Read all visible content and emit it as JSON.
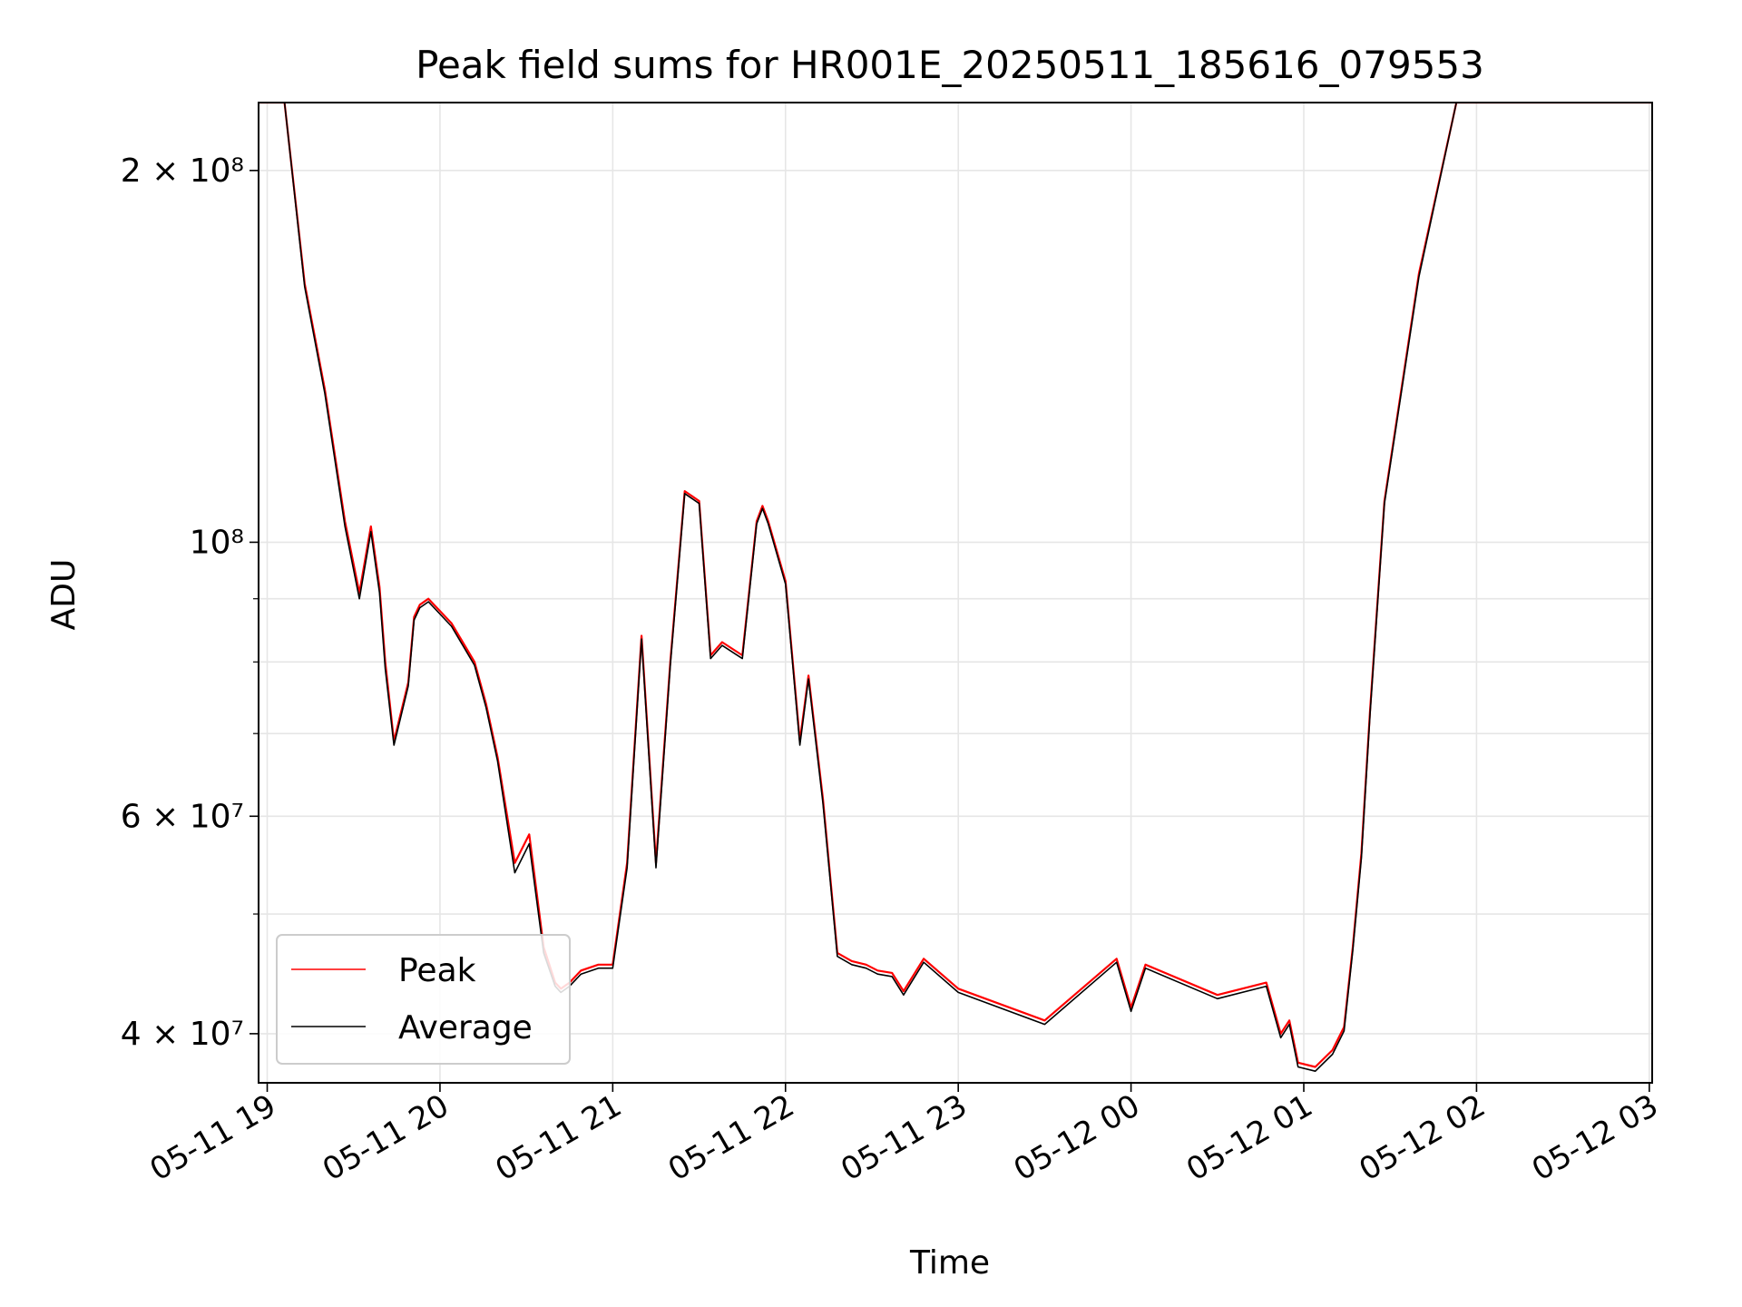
{
  "chart_data": {
    "type": "line",
    "title": "Peak field sums for HR001E_20250511_185616_079553",
    "xlabel": "Time",
    "ylabel": "ADU",
    "yscale": "log",
    "ylim": [
      36500000,
      227000000
    ],
    "xlim": [
      "2025-05-11 18:57",
      "2025-05-12 03:01"
    ],
    "grid": true,
    "legend_position": "lower-left",
    "x_ticks": [
      {
        "value": "2025-05-11 19:00",
        "label": "05-11 19"
      },
      {
        "value": "2025-05-11 20:00",
        "label": "05-11 20"
      },
      {
        "value": "2025-05-11 21:00",
        "label": "05-11 21"
      },
      {
        "value": "2025-05-11 22:00",
        "label": "05-11 22"
      },
      {
        "value": "2025-05-11 23:00",
        "label": "05-11 23"
      },
      {
        "value": "2025-05-12 00:00",
        "label": "05-12 00"
      },
      {
        "value": "2025-05-12 01:00",
        "label": "05-12 01"
      },
      {
        "value": "2025-05-12 02:00",
        "label": "05-12 02"
      },
      {
        "value": "2025-05-12 03:00",
        "label": "05-12 03"
      }
    ],
    "y_ticks": [
      {
        "value": 40000000,
        "label": "4 × 10⁷"
      },
      {
        "value": 60000000,
        "label": "6 × 10⁷"
      },
      {
        "value": 100000000,
        "label": "10⁸"
      },
      {
        "value": 200000000,
        "label": "2 × 10⁸"
      }
    ],
    "y_minor_ticks": [
      50000000,
      70000000,
      80000000,
      90000000
    ],
    "series": [
      {
        "name": "Peak",
        "color": "#ff0000",
        "x": [
          "2025-05-11 18:57",
          "2025-05-11 19:06",
          "2025-05-11 19:13",
          "2025-05-11 19:20",
          "2025-05-11 19:27",
          "2025-05-11 19:32",
          "2025-05-11 19:36",
          "2025-05-11 19:39",
          "2025-05-11 19:41",
          "2025-05-11 19:44",
          "2025-05-11 19:49",
          "2025-05-11 19:51",
          "2025-05-11 19:53",
          "2025-05-11 19:56",
          "2025-05-11 20:04",
          "2025-05-11 20:12",
          "2025-05-11 20:16",
          "2025-05-11 20:20",
          "2025-05-11 20:26",
          "20:31",
          "2025-05-11 20:36",
          "2025-05-11 20:40",
          "2025-05-11 20:42",
          "2025-05-11 20:45",
          "2025-05-11 20:49",
          "2025-05-11 20:55",
          "2025-05-11 21:00",
          "2025-05-11 21:05",
          "2025-05-11 21:10",
          "2025-05-11 21:15",
          "2025-05-11 21:20",
          "2025-05-11 21:25",
          "2025-05-11 21:30",
          "2025-05-11 21:34",
          "2025-05-11 21:38",
          "2025-05-11 21:45",
          "2025-05-11 21:50",
          "2025-05-11 21:52",
          "2025-05-11 21:54",
          "2025-05-11 22:00",
          "2025-05-11 22:05",
          "2025-05-11 22:08",
          "2025-05-11 22:13",
          "2025-05-11 22:18",
          "2025-05-11 22:23",
          "2025-05-11 22:28",
          "2025-05-11 22:32",
          "2025-05-11 22:37",
          "2025-05-11 22:41",
          "2025-05-11 22:48",
          "2025-05-11 23:00",
          "2025-05-11 23:30",
          "2025-05-11 23:55",
          "2025-05-12 00:00",
          "2025-05-12 00:05",
          "2025-05-12 00:30",
          "2025-05-12 00:47",
          "2025-05-12 00:52",
          "2025-05-12 00:55",
          "2025-05-12 00:58",
          "2025-05-12 01:04",
          "2025-05-12 01:10",
          "2025-05-12 01:14",
          "2025-05-12 01:17",
          "2025-05-12 01:20",
          "2025-05-12 01:23",
          "2025-05-12 01:28",
          "2025-05-12 01:40",
          "2025-05-12 01:53",
          "2025-05-12 02:05",
          "2025-05-12 02:13",
          "2025-05-12 02:20",
          "2025-05-12 02:27",
          "2025-05-12 02:34",
          "2025-05-12 02:42",
          "2025-05-12 02:49",
          "2025-05-12 02:56",
          "2025-05-12 03:01"
        ],
        "y": [
          227000000,
          227000000,
          162000000,
          133000000,
          104000000,
          91000000,
          103000000,
          92000000,
          80000000,
          69000000,
          77000000,
          87000000,
          89000000,
          90000000,
          86000000,
          80000000,
          74000000,
          67000000,
          55000000,
          58000000,
          47000000,
          44000000,
          43500000,
          44000000,
          45000000,
          45500000,
          45500000,
          55000000,
          84000000,
          55000000,
          80000000,
          110000000,
          108000000,
          81000000,
          83000000,
          81000000,
          104000000,
          107000000,
          104000000,
          93000000,
          69000000,
          78000000,
          62000000,
          46500000,
          45800000,
          45500000,
          45000000,
          44800000,
          43300000,
          46000000,
          43500000,
          41000000,
          46000000,
          42000000,
          45500000,
          43000000,
          44000000,
          40000000,
          41000000,
          37900000,
          37600000,
          38800000,
          40500000,
          47000000,
          56000000,
          73000000,
          108000000,
          165000000,
          227000000,
          227000000,
          227000000,
          227000000,
          227000000,
          227000000,
          227000000,
          227000000,
          227000000,
          227000000
        ]
      },
      {
        "name": "Average",
        "color": "#000000",
        "x": [
          "2025-05-11 18:57",
          "2025-05-11 19:06",
          "2025-05-11 19:13",
          "2025-05-11 19:20",
          "2025-05-11 19:27",
          "2025-05-11 19:32",
          "2025-05-11 19:36",
          "2025-05-11 19:39",
          "2025-05-11 19:41",
          "2025-05-11 19:44",
          "2025-05-11 19:49",
          "2025-05-11 19:51",
          "2025-05-11 19:53",
          "2025-05-11 19:56",
          "2025-05-11 20:04",
          "2025-05-11 20:12",
          "2025-05-11 20:16",
          "2025-05-11 20:20",
          "2025-05-11 20:26",
          "2025-05-11 20:31",
          "2025-05-11 20:36",
          "2025-05-11 20:40",
          "2025-05-11 20:42",
          "2025-05-11 20:45",
          "2025-05-11 20:49",
          "2025-05-11 20:55",
          "2025-05-11 21:00",
          "2025-05-11 21:05",
          "2025-05-11 21:10",
          "2025-05-11 21:15",
          "2025-05-11 21:20",
          "2025-05-11 21:25",
          "2025-05-11 21:30",
          "2025-05-11 21:34",
          "2025-05-11 21:38",
          "2025-05-11 21:45",
          "2025-05-11 21:50",
          "2025-05-11 21:52",
          "2025-05-11 21:54",
          "2025-05-11 22:00",
          "2025-05-11 22:05",
          "2025-05-11 22:08",
          "2025-05-11 22:13",
          "2025-05-11 22:18",
          "2025-05-11 22:23",
          "2025-05-11 22:28",
          "2025-05-11 22:32",
          "2025-05-11 22:37",
          "2025-05-11 22:41",
          "2025-05-11 22:48",
          "2025-05-11 23:00",
          "2025-05-11 23:30",
          "2025-05-11 23:55",
          "2025-05-12 00:00",
          "2025-05-12 00:05",
          "2025-05-12 00:30",
          "2025-05-12 00:47",
          "2025-05-12 00:52",
          "2025-05-12 00:55",
          "2025-05-12 00:58",
          "2025-05-12 01:04",
          "2025-05-12 01:10",
          "2025-05-12 01:14",
          "2025-05-12 01:17",
          "2025-05-12 01:20",
          "2025-05-12 01:23",
          "2025-05-12 01:28",
          "2025-05-12 01:40",
          "2025-05-12 01:53",
          "2025-05-12 02:05",
          "2025-05-12 02:13",
          "2025-05-12 02:20",
          "2025-05-12 02:27",
          "2025-05-12 02:34",
          "2025-05-12 02:42",
          "2025-05-12 02:49",
          "2025-05-12 02:56",
          "2025-05-12 03:01"
        ],
        "y": [
          227000000,
          227000000,
          161000000,
          132000000,
          103000000,
          90000000,
          102000000,
          91000000,
          79000000,
          68500000,
          76500000,
          86500000,
          88500000,
          89500000,
          85500000,
          79500000,
          73500000,
          66500000,
          54000000,
          57000000,
          46500000,
          43700000,
          43200000,
          43700000,
          44700000,
          45200000,
          45200000,
          54500000,
          83500000,
          54500000,
          79500000,
          109500000,
          107500000,
          80500000,
          82500000,
          80500000,
          103500000,
          106500000,
          103500000,
          92500000,
          68500000,
          77500000,
          61500000,
          46200000,
          45500000,
          45200000,
          44700000,
          44500000,
          43000000,
          45700000,
          43200000,
          40700000,
          45700000,
          41700000,
          45200000,
          42700000,
          43700000,
          39700000,
          40700000,
          37600000,
          37300000,
          38500000,
          40200000,
          46700000,
          55500000,
          72500000,
          107500000,
          164000000,
          227000000,
          227000000,
          227000000,
          227000000,
          227000000,
          227000000,
          227000000,
          227000000,
          227000000,
          227000000
        ]
      }
    ]
  }
}
